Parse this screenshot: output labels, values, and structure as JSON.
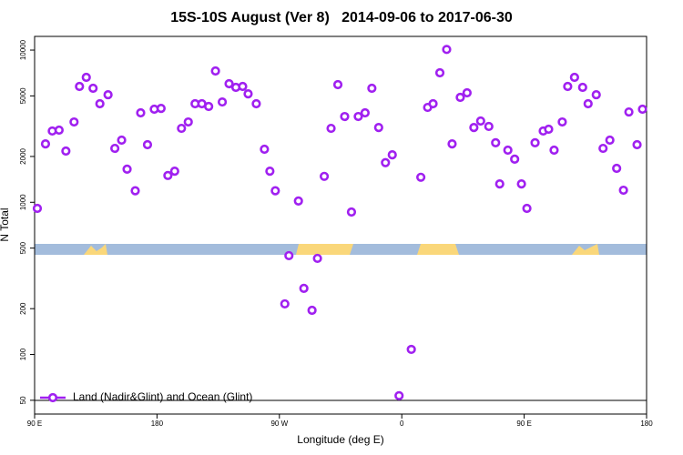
{
  "chart_data": {
    "type": "scatter",
    "title": "15S-10S August (Ver 8)   2014-09-06 to 2017-06-30",
    "xlabel": "Longitude (deg E)",
    "ylabel": "N Total",
    "xlim": [
      90,
      540
    ],
    "xticks": [
      {
        "value": 90,
        "label": "90 E"
      },
      {
        "value": 180,
        "label": "180"
      },
      {
        "value": 270,
        "label": "90 W"
      },
      {
        "value": 360,
        "label": "0"
      },
      {
        "value": 450,
        "label": "90 E"
      },
      {
        "value": 540,
        "label": "180"
      }
    ],
    "ylim": [
      40.6,
      12300
    ],
    "log_y": true,
    "yticks": [
      50,
      100,
      200,
      500,
      1000,
      2000,
      5000,
      10000
    ],
    "legend": "bottom-left",
    "series": [
      {
        "name": "Land (Nadir&Glint) and Ocean (Glint)",
        "color": "#a020f0",
        "x": [
          92,
          98,
          103,
          108,
          113,
          119,
          123,
          128,
          133,
          138,
          144,
          149,
          154,
          158,
          164,
          168,
          173,
          178,
          183,
          188,
          193,
          198,
          203,
          208,
          213,
          218,
          223,
          228,
          233,
          238,
          243,
          247,
          253,
          259,
          263,
          267,
          274,
          277,
          284,
          288,
          294,
          298,
          303,
          308,
          313,
          318,
          323,
          328,
          333,
          338,
          343,
          348,
          353,
          358,
          367,
          374,
          379,
          383,
          388,
          393,
          397,
          403,
          408,
          413,
          418,
          424,
          429,
          432,
          438,
          443,
          448,
          452,
          458,
          464,
          468,
          472,
          478,
          482,
          487,
          493,
          497,
          503,
          508,
          513,
          518,
          523,
          527,
          533,
          537
        ],
        "values": [
          912,
          2420,
          2940,
          2980,
          2170,
          3370,
          5770,
          6620,
          5610,
          4440,
          5090,
          2260,
          2560,
          1650,
          1190,
          3870,
          2390,
          4090,
          4140,
          1500,
          1600,
          3060,
          3370,
          4440,
          4440,
          4260,
          7290,
          4560,
          6010,
          5690,
          5770,
          5160,
          4440,
          2230,
          1600,
          1190,
          215,
          446,
          1020,
          272,
          195,
          428,
          1480,
          3060,
          5930,
          3660,
          863,
          3660,
          3870,
          5610,
          3100,
          1820,
          2050,
          53.6,
          108,
          1460,
          4200,
          4440,
          7090,
          10100,
          2420,
          4890,
          5240,
          3100,
          3420,
          3150,
          2460,
          1320,
          2200,
          1920,
          1320,
          912,
          2460,
          2940,
          3020,
          2200,
          3370,
          5770,
          6620,
          5690,
          4440,
          5090,
          2260,
          2560,
          1670,
          1200,
          3920,
          2390,
          4090
        ]
      }
    ]
  }
}
